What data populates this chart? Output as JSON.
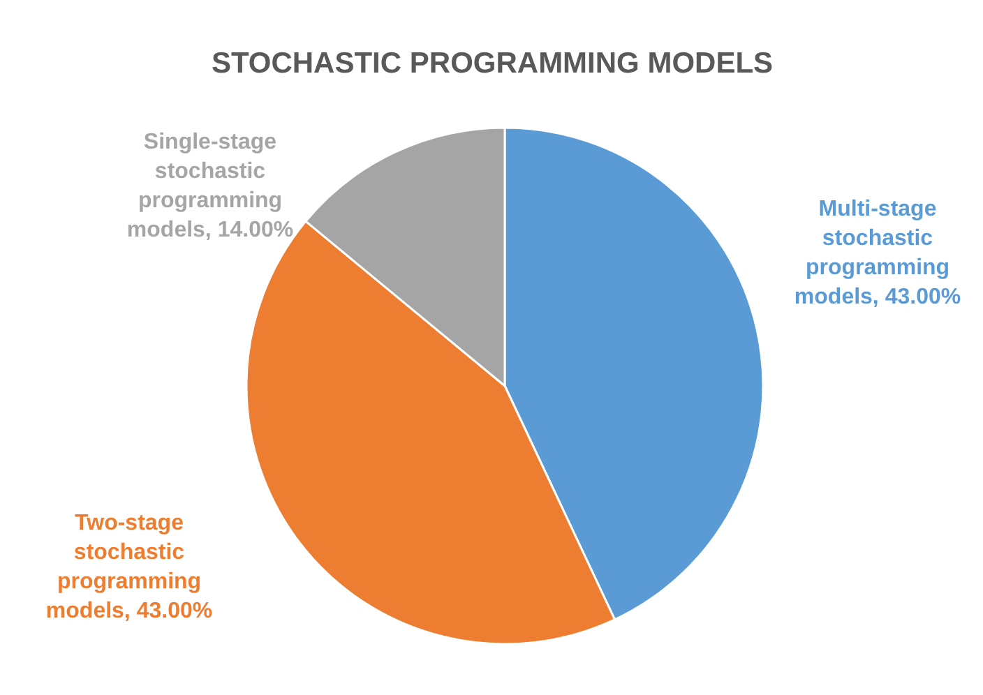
{
  "chart_data": {
    "type": "pie",
    "title": "STOCHASTIC PROGRAMMING MODELS",
    "categories": [
      "Multi-stage stochastic programming models",
      "Two-stage stochastic programming models",
      "Single-stage stochastic programming models"
    ],
    "values": [
      43,
      43,
      14
    ],
    "value_labels": [
      "43.00%",
      "43.00%",
      "14.00%"
    ],
    "colors": [
      "#5b9bd5",
      "#ed7d31",
      "#a5a5a5"
    ]
  }
}
